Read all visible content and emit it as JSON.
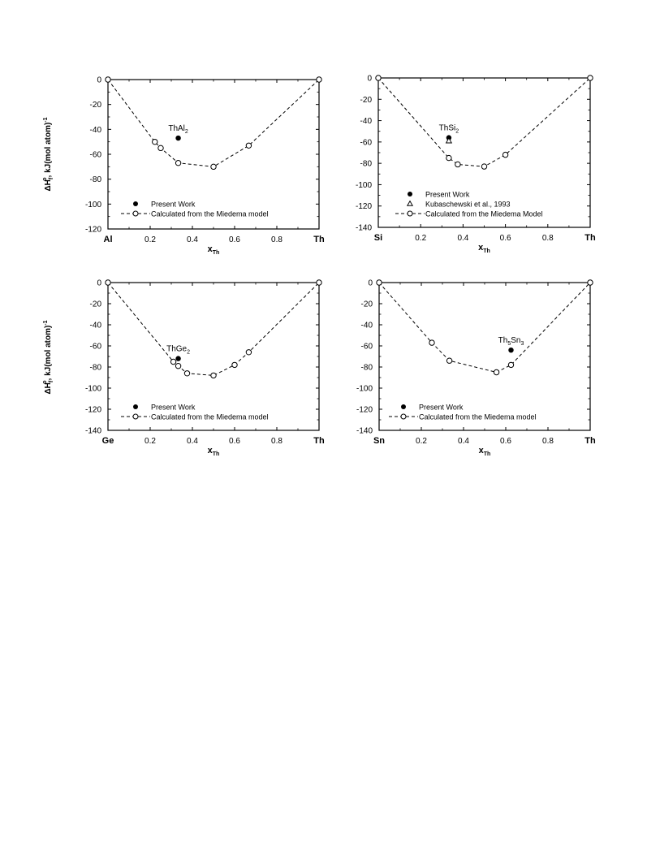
{
  "colors": {
    "ink": "#000000",
    "marker_open_fill": "#ffffff",
    "background": "#ffffff"
  },
  "chart_data": [
    {
      "type": "scatter",
      "id": "al",
      "ylabel": "ΔH°f , kJ(mol atom)-1",
      "ylabel_parts": {
        "pre": "ΔH",
        "sub": "f",
        "sup": "o",
        "unit": ", kJ(mol atom)",
        "unit_sup": "-1"
      },
      "xlabel_parts": {
        "main": "x",
        "sub": "Th"
      },
      "x_start_label": "Al",
      "x_end_label": "Th",
      "xticks": [
        "0.2",
        "0.4",
        "0.6",
        "0.8"
      ],
      "xtick_values": [
        0.2,
        0.4,
        0.6,
        0.8
      ],
      "yticks": [
        "0",
        "-20",
        "-40",
        "-60",
        "-80",
        "-100",
        "-120"
      ],
      "ytick_values": [
        0,
        -20,
        -40,
        -60,
        -80,
        -100,
        -120
      ],
      "xlim": [
        0,
        1
      ],
      "ylim": [
        -120,
        0
      ],
      "legend": [
        {
          "marker": "filled-circle",
          "label": "Present Work"
        },
        {
          "marker": "dashed-open-circle",
          "label": "Calculated from the Miedema model"
        }
      ],
      "series": [
        {
          "name": "Present Work",
          "marker": "filled-circle",
          "x": [
            0.333
          ],
          "y": [
            -47
          ],
          "labels": [
            {
              "main": "ThAl",
              "sub": "2",
              "suffix": ""
            }
          ]
        },
        {
          "name": "Calculated from the Miedema model",
          "marker": "open-circle",
          "line": "dashed",
          "x": [
            0,
            0.222,
            0.25,
            0.333,
            0.5,
            0.667,
            1
          ],
          "y": [
            0,
            -50,
            -55,
            -67,
            -70,
            -53,
            0
          ]
        }
      ]
    },
    {
      "type": "scatter",
      "id": "si",
      "ylabel": "",
      "xlabel_parts": {
        "main": "x",
        "sub": "Th"
      },
      "x_start_label": "Si",
      "x_end_label": "Th",
      "xticks": [
        "0.2",
        "0.4",
        "0.6",
        "0.8"
      ],
      "xtick_values": [
        0.2,
        0.4,
        0.6,
        0.8
      ],
      "yticks": [
        "0",
        "-20",
        "-40",
        "-60",
        "-80",
        "-100",
        "-120",
        "-140"
      ],
      "ytick_values": [
        0,
        -20,
        -40,
        -60,
        -80,
        -100,
        -120,
        -140
      ],
      "xlim": [
        0,
        1
      ],
      "ylim": [
        -140,
        0
      ],
      "legend": [
        {
          "marker": "filled-circle",
          "label": "Present Work"
        },
        {
          "marker": "open-triangle",
          "label": "Kubaschewski et al., 1993"
        },
        {
          "marker": "dashed-open-circle",
          "label": "Calculated from the Miedema Model"
        }
      ],
      "series": [
        {
          "name": "Present Work",
          "marker": "filled-circle",
          "x": [
            0.333
          ],
          "y": [
            -56
          ],
          "labels": [
            {
              "main": "ThSi",
              "sub": "2",
              "suffix": ""
            }
          ]
        },
        {
          "name": "Kubaschewski et al., 1993",
          "marker": "open-triangle",
          "x": [
            0.333
          ],
          "y": [
            -59
          ]
        },
        {
          "name": "Calculated from the Miedema Model",
          "marker": "open-circle",
          "line": "dashed",
          "x": [
            0,
            0.333,
            0.375,
            0.5,
            0.6,
            1
          ],
          "y": [
            0,
            -75,
            -81,
            -83,
            -72,
            0
          ]
        }
      ]
    },
    {
      "type": "scatter",
      "id": "ge",
      "ylabel": "ΔH°f , kJ(mol atom)-1",
      "ylabel_parts": {
        "pre": "ΔH",
        "sub": "f",
        "sup": "o",
        "unit": ", kJ(mol atom)",
        "unit_sup": "-1"
      },
      "xlabel_parts": {
        "main": "x",
        "sub": "Th"
      },
      "x_start_label": "Ge",
      "x_end_label": "Th",
      "xticks": [
        "0.2",
        "0.4",
        "0.6",
        "0.8"
      ],
      "xtick_values": [
        0.2,
        0.4,
        0.6,
        0.8
      ],
      "yticks": [
        "0",
        "-20",
        "-40",
        "-60",
        "-80",
        "-100",
        "-120",
        "-140"
      ],
      "ytick_values": [
        0,
        -20,
        -40,
        -60,
        -80,
        -100,
        -120,
        -140
      ],
      "xlim": [
        0,
        1
      ],
      "ylim": [
        -140,
        0
      ],
      "legend": [
        {
          "marker": "filled-circle",
          "label": "Present Work"
        },
        {
          "marker": "dashed-open-circle",
          "label": "Calculated from the Miedema model"
        }
      ],
      "series": [
        {
          "name": "Present Work",
          "marker": "filled-circle",
          "x": [
            0.333
          ],
          "y": [
            -72
          ],
          "labels": [
            {
              "main": "ThGe",
              "sub": "2",
              "suffix": ""
            }
          ]
        },
        {
          "name": "Calculated from the Miedema model",
          "marker": "open-circle",
          "line": "dashed",
          "x": [
            0,
            0.31,
            0.333,
            0.375,
            0.5,
            0.6,
            0.667,
            1
          ],
          "y": [
            0,
            -75,
            -79,
            -86,
            -88,
            -78,
            -66,
            0
          ]
        }
      ]
    },
    {
      "type": "scatter",
      "id": "sn",
      "ylabel": "",
      "xlabel_parts": {
        "main": "x",
        "sub": "Th"
      },
      "x_start_label": "Sn",
      "x_end_label": "Th",
      "xticks": [
        "0.2",
        "0.4",
        "0.6",
        "0.8"
      ],
      "xtick_values": [
        0.2,
        0.4,
        0.6,
        0.8
      ],
      "yticks": [
        "0",
        "-20",
        "-40",
        "-60",
        "-80",
        "-100",
        "-120",
        "-140"
      ],
      "ytick_values": [
        0,
        -20,
        -40,
        -60,
        -80,
        -100,
        -120,
        -140
      ],
      "xlim": [
        0,
        1
      ],
      "ylim": [
        -140,
        0
      ],
      "legend": [
        {
          "marker": "filled-circle",
          "label": "Present Work"
        },
        {
          "marker": "dashed-open-circle",
          "label": "Calculated from the Miedema model"
        }
      ],
      "series": [
        {
          "name": "Present Work",
          "marker": "filled-circle",
          "x": [
            0.625
          ],
          "y": [
            -64
          ],
          "labels": [
            {
              "main": "Th",
              "sub": "5",
              "suffix": "Sn",
              "sub2": "3"
            }
          ]
        },
        {
          "name": "Calculated from the Miedema model",
          "marker": "open-circle",
          "line": "dashed",
          "x": [
            0,
            0.25,
            0.333,
            0.556,
            0.625,
            1
          ],
          "y": [
            0,
            -57,
            -74,
            -85,
            -78,
            0
          ]
        }
      ]
    }
  ]
}
